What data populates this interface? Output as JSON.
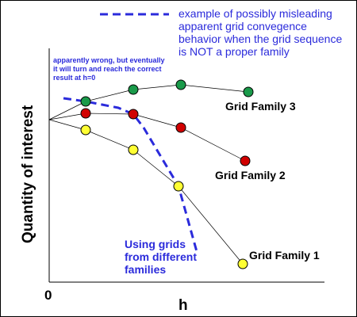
{
  "diagram": {
    "legend_text": [
      "example of possibly misleading",
      "apparent grid convegence",
      "behavior when the grid sequence",
      "is NOT a proper family"
    ],
    "annotation_text": [
      "apparently wrong, but eventually",
      "it will turn and reach the correct",
      "result at h=0"
    ],
    "using_grids_text": [
      "Using grids",
      "from different",
      "families"
    ],
    "y_axis_label": "Quantity of interest",
    "x_axis_label": "h",
    "origin_label": "0",
    "family_labels": {
      "family3": "Grid Family 3",
      "family2": "Grid Family 2",
      "family1": "Grid Family 1"
    },
    "colors": {
      "family3": "#1a9a4a",
      "family2": "#d10000",
      "family1": "#ffff33",
      "dashed": "#2b2bdb",
      "lines": "#000000"
    }
  }
}
